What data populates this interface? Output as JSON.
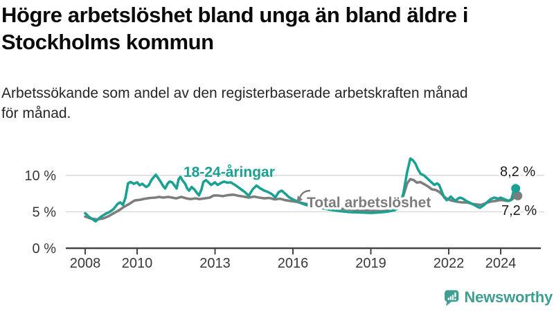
{
  "header": {
    "title_lines": [
      "Högre arbetslöshet bland unga än bland äldre i",
      "Stockholms kommun"
    ],
    "subtitle_lines": [
      "Arbetssökande som andel av den registerbaserade arbetskraften månad",
      "för månad."
    ]
  },
  "chart_data": {
    "type": "line",
    "title": "Högre arbetslöshet bland unga än bland äldre i Stockholms kommun",
    "subtitle": "Arbetssökande som andel av den registerbaserade arbetskraften månad för månad.",
    "unit": "%",
    "grid": "horizontal",
    "xlim": [
      2008,
      2024.6
    ],
    "ylim": [
      0,
      14
    ],
    "x_ticks": [
      2008,
      2010,
      2013,
      2016,
      2019,
      2022,
      2024
    ],
    "y_ticks": [
      {
        "value": 0,
        "label": "0 %"
      },
      {
        "value": 5,
        "label": "5 %"
      },
      {
        "value": 10,
        "label": "10 %"
      }
    ],
    "series": [
      {
        "name": "18-24-åringar",
        "color": "#1aa192",
        "end_value": 8.2,
        "end_label": "8,2 %",
        "points": [
          [
            2008.0,
            4.8
          ],
          [
            2008.15,
            4.3
          ],
          [
            2008.4,
            3.7
          ],
          [
            2008.6,
            4.3
          ],
          [
            2008.8,
            4.75
          ],
          [
            2008.95,
            5.0
          ],
          [
            2009.1,
            5.4
          ],
          [
            2009.25,
            6.1
          ],
          [
            2009.35,
            6.3
          ],
          [
            2009.45,
            5.95
          ],
          [
            2009.55,
            6.9
          ],
          [
            2009.65,
            8.9
          ],
          [
            2009.75,
            9.1
          ],
          [
            2009.87,
            8.85
          ],
          [
            2010.0,
            9.05
          ],
          [
            2010.1,
            8.65
          ],
          [
            2010.2,
            8.85
          ],
          [
            2010.35,
            8.4
          ],
          [
            2010.45,
            8.65
          ],
          [
            2010.55,
            9.35
          ],
          [
            2010.65,
            9.8
          ],
          [
            2010.72,
            10.1
          ],
          [
            2010.82,
            9.6
          ],
          [
            2010.92,
            9.05
          ],
          [
            2011.0,
            8.55
          ],
          [
            2011.08,
            8.2
          ],
          [
            2011.17,
            8.85
          ],
          [
            2011.25,
            9.15
          ],
          [
            2011.35,
            9.05
          ],
          [
            2011.45,
            8.55
          ],
          [
            2011.52,
            8.2
          ],
          [
            2011.6,
            9.5
          ],
          [
            2011.67,
            9.8
          ],
          [
            2011.75,
            9.3
          ],
          [
            2011.85,
            8.85
          ],
          [
            2011.93,
            8.2
          ],
          [
            2012.0,
            7.9
          ],
          [
            2012.1,
            8.4
          ],
          [
            2012.2,
            8.1
          ],
          [
            2012.28,
            7.7
          ],
          [
            2012.38,
            7.25
          ],
          [
            2012.48,
            8.1
          ],
          [
            2012.55,
            9.1
          ],
          [
            2012.65,
            9.35
          ],
          [
            2012.75,
            9.05
          ],
          [
            2012.85,
            8.7
          ],
          [
            2013.0,
            9.05
          ],
          [
            2013.1,
            8.7
          ],
          [
            2013.22,
            8.95
          ],
          [
            2013.35,
            9.15
          ],
          [
            2013.48,
            9.0
          ],
          [
            2013.6,
            9.05
          ],
          [
            2013.72,
            8.8
          ],
          [
            2013.85,
            8.5
          ],
          [
            2014.0,
            8.1
          ],
          [
            2014.15,
            7.7
          ],
          [
            2014.3,
            7.2
          ],
          [
            2014.45,
            8.1
          ],
          [
            2014.6,
            8.6
          ],
          [
            2014.75,
            8.2
          ],
          [
            2014.9,
            7.9
          ],
          [
            2015.05,
            7.7
          ],
          [
            2015.2,
            7.4
          ],
          [
            2015.32,
            6.95
          ],
          [
            2015.45,
            7.7
          ],
          [
            2015.57,
            7.9
          ],
          [
            2015.7,
            7.5
          ],
          [
            2015.85,
            7.0
          ],
          [
            2016.0,
            6.7
          ],
          [
            2016.15,
            6.45
          ],
          [
            2016.3,
            6.2
          ],
          [
            2016.5,
            5.95
          ],
          [
            2016.7,
            5.75
          ],
          [
            2017.0,
            5.6
          ],
          [
            2017.4,
            5.3
          ],
          [
            2017.8,
            5.1
          ],
          [
            2018.2,
            4.95
          ],
          [
            2018.6,
            4.9
          ],
          [
            2019.0,
            4.85
          ],
          [
            2019.3,
            4.9
          ],
          [
            2019.6,
            5.0
          ],
          [
            2019.9,
            5.2
          ],
          [
            2020.1,
            5.6
          ],
          [
            2020.25,
            7.5
          ],
          [
            2020.4,
            10.5
          ],
          [
            2020.52,
            12.3
          ],
          [
            2020.62,
            12.1
          ],
          [
            2020.72,
            11.6
          ],
          [
            2020.82,
            10.8
          ],
          [
            2020.92,
            10.2
          ],
          [
            2021.05,
            10.0
          ],
          [
            2021.2,
            9.5
          ],
          [
            2021.32,
            9.1
          ],
          [
            2021.45,
            8.7
          ],
          [
            2021.55,
            8.9
          ],
          [
            2021.63,
            8.7
          ],
          [
            2021.72,
            7.9
          ],
          [
            2021.82,
            7.0
          ],
          [
            2021.92,
            6.6
          ],
          [
            2022.0,
            6.8
          ],
          [
            2022.08,
            7.1
          ],
          [
            2022.16,
            6.8
          ],
          [
            2022.25,
            6.5
          ],
          [
            2022.35,
            6.8
          ],
          [
            2022.44,
            6.95
          ],
          [
            2022.55,
            6.8
          ],
          [
            2022.65,
            6.55
          ],
          [
            2022.78,
            6.3
          ],
          [
            2022.9,
            6.1
          ],
          [
            2023.05,
            5.8
          ],
          [
            2023.2,
            5.55
          ],
          [
            2023.35,
            5.9
          ],
          [
            2023.5,
            6.4
          ],
          [
            2023.62,
            6.75
          ],
          [
            2023.75,
            6.95
          ],
          [
            2023.9,
            6.8
          ],
          [
            2024.0,
            6.95
          ],
          [
            2024.1,
            6.8
          ],
          [
            2024.2,
            6.65
          ],
          [
            2024.32,
            6.5
          ],
          [
            2024.42,
            6.8
          ],
          [
            2024.5,
            7.9
          ],
          [
            2024.58,
            8.2
          ]
        ]
      },
      {
        "name": "Total arbetslöshet",
        "color": "#7d7d7d",
        "end_value": 7.2,
        "end_label": "7,2 %",
        "points": [
          [
            2008.0,
            4.35
          ],
          [
            2008.2,
            4.1
          ],
          [
            2008.45,
            3.95
          ],
          [
            2008.7,
            4.1
          ],
          [
            2008.9,
            4.4
          ],
          [
            2009.1,
            4.8
          ],
          [
            2009.3,
            5.2
          ],
          [
            2009.5,
            5.7
          ],
          [
            2009.7,
            6.1
          ],
          [
            2009.9,
            6.55
          ],
          [
            2010.1,
            6.65
          ],
          [
            2010.3,
            6.8
          ],
          [
            2010.5,
            6.9
          ],
          [
            2010.7,
            6.95
          ],
          [
            2010.85,
            7.05
          ],
          [
            2011.0,
            6.95
          ],
          [
            2011.2,
            7.05
          ],
          [
            2011.35,
            6.95
          ],
          [
            2011.5,
            6.85
          ],
          [
            2011.7,
            7.05
          ],
          [
            2011.9,
            6.85
          ],
          [
            2012.05,
            6.75
          ],
          [
            2012.25,
            6.85
          ],
          [
            2012.4,
            6.75
          ],
          [
            2012.6,
            6.85
          ],
          [
            2012.8,
            6.95
          ],
          [
            2012.95,
            7.25
          ],
          [
            2013.1,
            7.25
          ],
          [
            2013.3,
            7.15
          ],
          [
            2013.5,
            7.3
          ],
          [
            2013.7,
            7.35
          ],
          [
            2013.9,
            7.2
          ],
          [
            2014.1,
            7.1
          ],
          [
            2014.3,
            6.95
          ],
          [
            2014.5,
            7.1
          ],
          [
            2014.7,
            6.95
          ],
          [
            2014.9,
            6.85
          ],
          [
            2015.1,
            6.9
          ],
          [
            2015.3,
            6.7
          ],
          [
            2015.5,
            6.8
          ],
          [
            2015.7,
            6.6
          ],
          [
            2015.9,
            6.5
          ],
          [
            2016.1,
            6.4
          ],
          [
            2016.3,
            6.25
          ],
          [
            2016.5,
            6.1
          ],
          [
            2016.7,
            5.95
          ],
          [
            2017.0,
            5.8
          ],
          [
            2017.4,
            5.6
          ],
          [
            2017.8,
            5.45
          ],
          [
            2018.2,
            5.3
          ],
          [
            2018.6,
            5.2
          ],
          [
            2019.0,
            5.15
          ],
          [
            2019.4,
            5.1
          ],
          [
            2019.8,
            5.2
          ],
          [
            2020.1,
            5.6
          ],
          [
            2020.25,
            7.2
          ],
          [
            2020.4,
            8.9
          ],
          [
            2020.52,
            9.5
          ],
          [
            2020.65,
            9.35
          ],
          [
            2020.78,
            9.0
          ],
          [
            2020.9,
            9.1
          ],
          [
            2021.05,
            8.8
          ],
          [
            2021.2,
            8.5
          ],
          [
            2021.35,
            8.1
          ],
          [
            2021.5,
            8.0
          ],
          [
            2021.65,
            7.7
          ],
          [
            2021.8,
            7.15
          ],
          [
            2021.95,
            6.75
          ],
          [
            2022.1,
            6.55
          ],
          [
            2022.3,
            6.4
          ],
          [
            2022.5,
            6.3
          ],
          [
            2022.7,
            6.3
          ],
          [
            2022.9,
            6.1
          ],
          [
            2023.1,
            6.0
          ],
          [
            2023.25,
            5.95
          ],
          [
            2023.4,
            6.15
          ],
          [
            2023.6,
            6.4
          ],
          [
            2023.8,
            6.5
          ],
          [
            2023.95,
            6.6
          ],
          [
            2024.1,
            6.6
          ],
          [
            2024.25,
            6.5
          ],
          [
            2024.4,
            6.6
          ],
          [
            2024.5,
            6.9
          ],
          [
            2024.58,
            7.2
          ]
        ]
      }
    ]
  },
  "footer": {
    "brand": "Newsworthy"
  },
  "colors": {
    "youth_line": "#1aa192",
    "total_line": "#7d7d7d",
    "brand_teal": "#3e9e92",
    "gridline": "#d9d9d9",
    "axis": "#444444"
  }
}
